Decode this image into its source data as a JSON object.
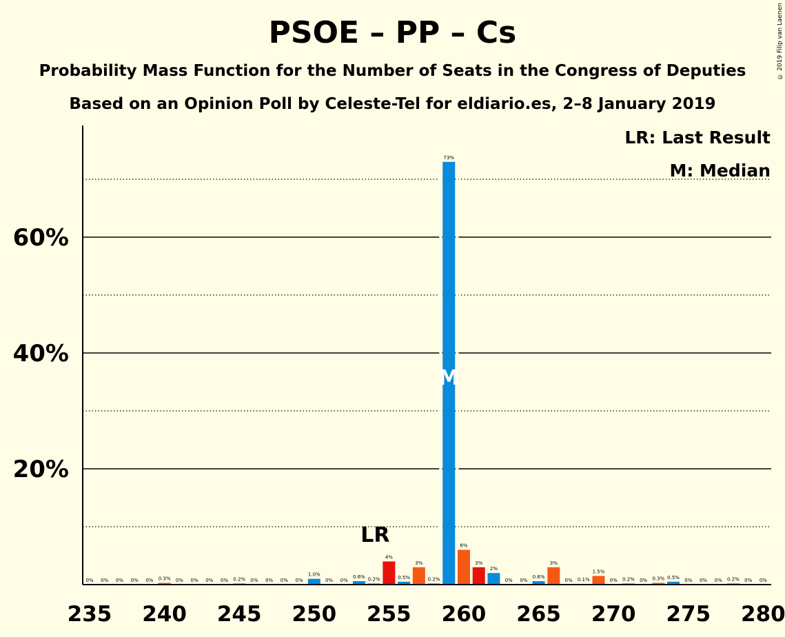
{
  "title": "PSOE – PP – Cs",
  "subtitle_1": "Probability Mass Function for the Number of Seats in the Congress of Deputies",
  "subtitle_2": "Based on an Opinion Poll by Celeste-Tel for eldiario.es, 2–8 January 2019",
  "copyright": "© 2019 Filip van Laenen",
  "legend": {
    "last_result": "LR: Last Result",
    "median": "M: Median"
  },
  "markers": {
    "last_result_label": "LR",
    "last_result_seat": 255,
    "median_label": "M",
    "median_seat": 259
  },
  "colors": {
    "background": "#FFFDE6",
    "blue": "#0A8ADB",
    "red": "#E8120C",
    "orange": "#F55A14"
  },
  "chart_data": {
    "type": "bar",
    "title": "PSOE – PP – Cs",
    "xlabel": "",
    "ylabel": "",
    "xlim": [
      235,
      280
    ],
    "ylim": [
      0,
      80
    ],
    "x_ticks": [
      235,
      240,
      245,
      250,
      255,
      260,
      265,
      270,
      275,
      280
    ],
    "y_ticks": [
      "20%",
      "40%",
      "60%"
    ],
    "y_tick_values": [
      20,
      40,
      60
    ],
    "grid": "solid lines at 20% steps, dotted lines at 10%, 30%, 50%, 70%",
    "categories": [
      235,
      236,
      237,
      238,
      239,
      240,
      241,
      242,
      243,
      244,
      245,
      246,
      247,
      248,
      249,
      250,
      251,
      252,
      253,
      254,
      255,
      256,
      257,
      258,
      259,
      260,
      261,
      262,
      263,
      264,
      265,
      266,
      267,
      268,
      269,
      270,
      271,
      272,
      273,
      274,
      275,
      276,
      277,
      278,
      279,
      280
    ],
    "values": [
      0,
      0,
      0,
      0,
      0,
      0.3,
      0,
      0,
      0,
      0,
      0.2,
      0,
      0,
      0,
      0,
      1.0,
      0,
      0,
      0.6,
      0.2,
      4,
      0.5,
      3,
      0.2,
      73,
      6,
      3,
      2,
      0,
      0,
      0.6,
      3,
      0,
      0.1,
      1.5,
      0,
      0.2,
      0,
      0.3,
      0.5,
      0,
      0,
      0,
      0.2,
      0,
      0
    ],
    "labels": [
      "0%",
      "0%",
      "0%",
      "0%",
      "0%",
      "0.3%",
      "0%",
      "0%",
      "0%",
      "0%",
      "0.2%",
      "0%",
      "0%",
      "0%",
      "0%",
      "1.0%",
      "0%",
      "0%",
      "0.6%",
      "0.2%",
      "4%",
      "0.5%",
      "3%",
      "0.2%",
      "73%",
      "6%",
      "3%",
      "2%",
      "0%",
      "0%",
      "0.6%",
      "3%",
      "0%",
      "0.1%",
      "1.5%",
      "0%",
      "0.2%",
      "0%",
      "0.3%",
      "0.5%",
      "0%",
      "0%",
      "0%",
      "0.2%",
      "0%",
      "0%"
    ],
    "bar_colors": [
      "blue",
      "blue",
      "blue",
      "blue",
      "blue",
      "orange",
      "blue",
      "blue",
      "blue",
      "blue",
      "orange",
      "blue",
      "blue",
      "blue",
      "blue",
      "blue",
      "blue",
      "blue",
      "blue",
      "orange",
      "red",
      "blue",
      "orange",
      "orange",
      "blue",
      "orange",
      "red",
      "blue",
      "blue",
      "blue",
      "blue",
      "orange",
      "blue",
      "orange",
      "orange",
      "blue",
      "orange",
      "blue",
      "orange",
      "blue",
      "blue",
      "blue",
      "blue",
      "orange",
      "blue",
      "blue"
    ]
  }
}
